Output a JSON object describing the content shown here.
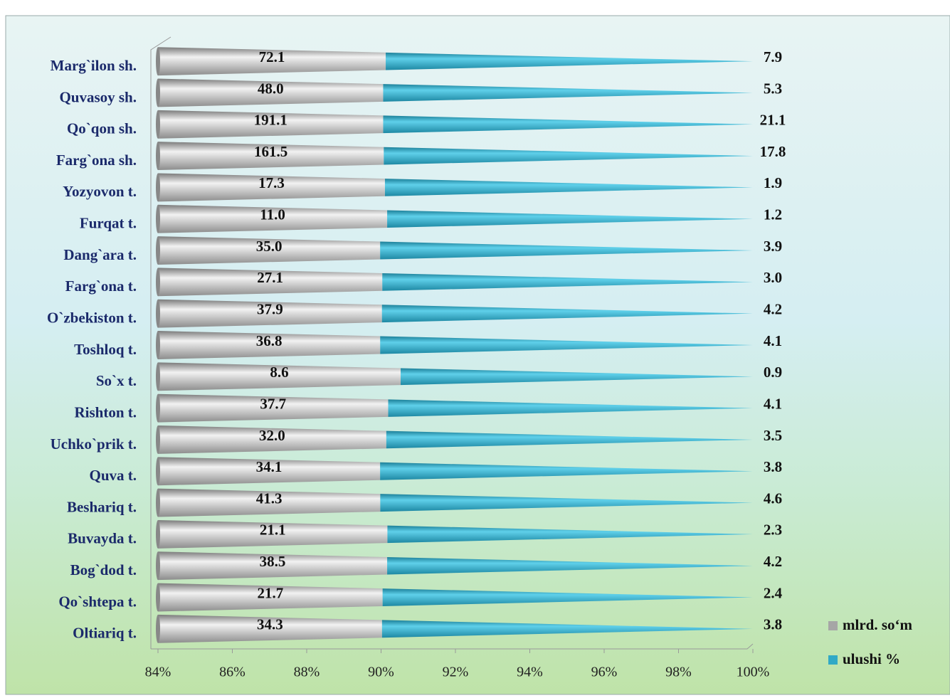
{
  "chart_data": {
    "type": "bar",
    "orientation": "horizontal",
    "stacking": "percent",
    "categories": [
      "Marg`ilon sh.",
      "Quvasoy sh.",
      "Qo`qon sh.",
      "Farg`ona sh.",
      "Yozyovon t.",
      "Furqat t.",
      "Dang`ara t.",
      "Farg`ona t.",
      "O`zbekiston t.",
      "Toshloq t.",
      "So`x t.",
      "Rishton t.",
      "Uchko`prik t.",
      "Quva t.",
      "Beshariq t.",
      "Buvayda t.",
      "Bog`dod t.",
      "Qo`shtepa t.",
      "Oltiariq t."
    ],
    "series": [
      {
        "name": "mlrd. so‘m",
        "color": "#a6a6a6",
        "values": [
          72.1,
          48.0,
          191.1,
          161.5,
          17.3,
          11.0,
          35.0,
          27.1,
          37.9,
          36.8,
          8.6,
          37.7,
          32.0,
          34.1,
          41.3,
          21.1,
          38.5,
          21.7,
          34.3
        ],
        "value_labels": [
          "72.1",
          "48.0",
          "191.1",
          "161.5",
          "17.3",
          "11.0",
          "35.0",
          "27.1",
          "37.9",
          "36.8",
          "8.6",
          "37.7",
          "32.0",
          "34.1",
          "41.3",
          "21.1",
          "38.5",
          "21.7",
          "34.3"
        ]
      },
      {
        "name": "ulushi %",
        "color": "#31a9c6",
        "values": [
          7.9,
          5.3,
          21.1,
          17.8,
          1.9,
          1.2,
          3.9,
          3.0,
          4.2,
          4.1,
          0.9,
          4.1,
          3.5,
          3.8,
          4.6,
          2.3,
          4.2,
          2.4,
          3.8
        ],
        "value_labels": [
          "7.9",
          "5.3",
          "21.1",
          "17.8",
          "1.9",
          "1.2",
          "3.9",
          "3.0",
          "4.2",
          "4.1",
          "0.9",
          "4.1",
          "3.5",
          "3.8",
          "4.6",
          "2.3",
          "4.2",
          "2.4",
          "3.8"
        ]
      }
    ],
    "xlim": [
      84,
      100
    ],
    "xticks": [
      {
        "value": 84,
        "label": "84%"
      },
      {
        "value": 86,
        "label": "86%"
      },
      {
        "value": 88,
        "label": "88%"
      },
      {
        "value": 90,
        "label": "90%"
      },
      {
        "value": 92,
        "label": "92%"
      },
      {
        "value": 94,
        "label": "94%"
      },
      {
        "value": 96,
        "label": "96%"
      },
      {
        "value": 98,
        "label": "98%"
      },
      {
        "value": 100,
        "label": "100%"
      }
    ],
    "legend": "bottom-right"
  }
}
